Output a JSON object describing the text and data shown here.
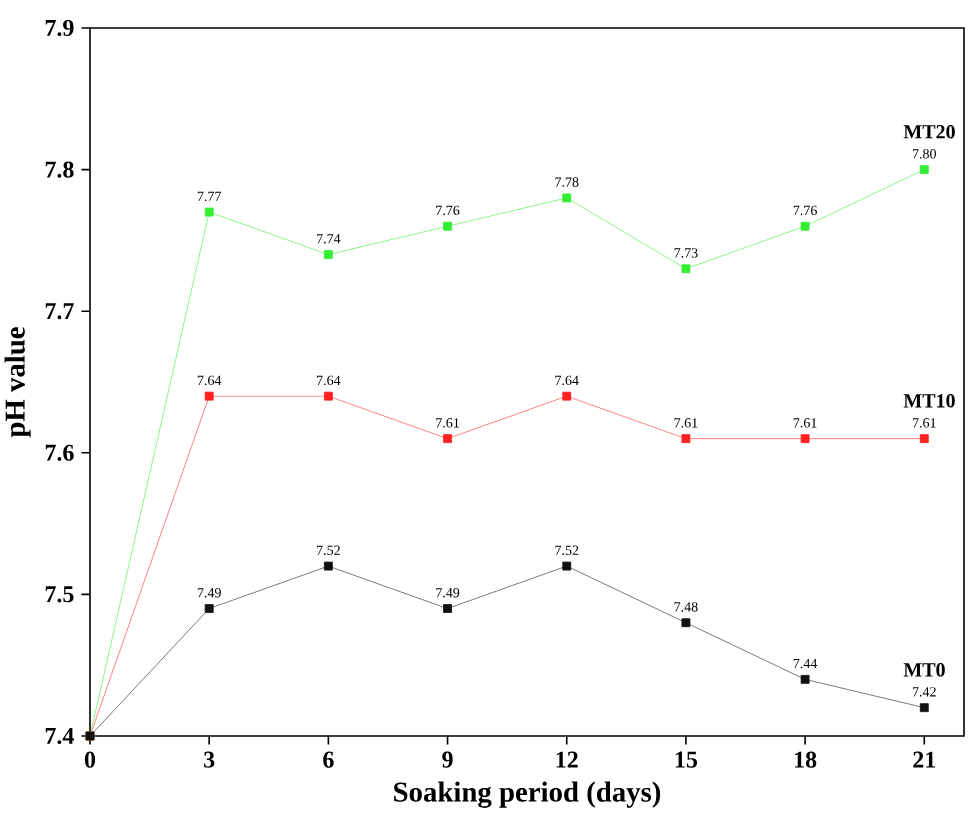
{
  "chart_data": {
    "type": "line",
    "xlabel": "Soaking period (days)",
    "ylabel": "pH value",
    "x": [
      0,
      3,
      6,
      9,
      12,
      15,
      18,
      21
    ],
    "series": [
      {
        "name": "MT20",
        "color": "#33ee33",
        "values": [
          7.4,
          7.77,
          7.74,
          7.76,
          7.78,
          7.73,
          7.76,
          7.8
        ],
        "value_labels": [
          null,
          "7.77",
          "7.74",
          "7.76",
          "7.78",
          "7.73",
          "7.76",
          "7.80"
        ]
      },
      {
        "name": "MT10",
        "color": "#ff2020",
        "values": [
          7.4,
          7.64,
          7.64,
          7.61,
          7.64,
          7.61,
          7.61,
          7.61
        ],
        "value_labels": [
          null,
          "7.64",
          "7.64",
          "7.61",
          "7.64",
          "7.61",
          "7.61",
          "7.61"
        ]
      },
      {
        "name": "MT0",
        "color": "#111111",
        "values": [
          7.4,
          7.49,
          7.52,
          7.49,
          7.52,
          7.48,
          7.44,
          7.42
        ],
        "value_labels": [
          null,
          "7.49",
          "7.52",
          "7.49",
          "7.52",
          "7.48",
          "7.44",
          "7.42"
        ]
      }
    ],
    "xlim": [
      0,
      22
    ],
    "xticks": [
      0,
      3,
      6,
      9,
      12,
      15,
      18,
      21
    ],
    "ylim": [
      7.4,
      7.9
    ],
    "yticks": [
      7.4,
      7.5,
      7.6,
      7.7,
      7.8,
      7.9
    ],
    "marker": "square",
    "line_style": "solid",
    "grid": false
  }
}
